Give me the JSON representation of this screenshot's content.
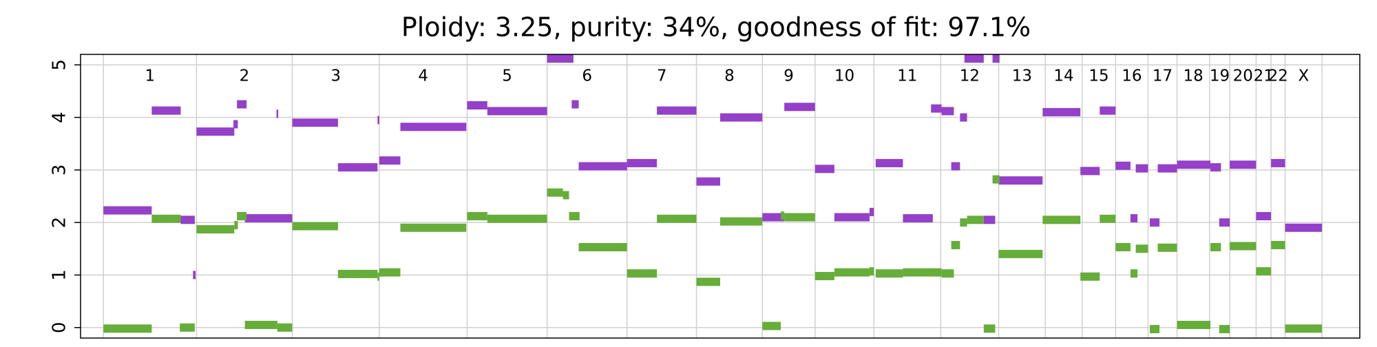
{
  "chart_data": {
    "type": "segments",
    "title": "Ploidy: 3.25, purity: 34%, goodness of fit: 97.1%",
    "xlim": [
      92,
      1548
    ],
    "ylim": [
      -0.2,
      5.2
    ],
    "yticks": [
      0,
      1,
      2,
      3,
      4,
      5
    ],
    "grid": true,
    "chromosomes": [
      "1",
      "2",
      "3",
      "4",
      "5",
      "6",
      "7",
      "8",
      "9",
      "10",
      "11",
      "12",
      "13",
      "14",
      "15",
      "16",
      "17",
      "18",
      "19",
      "20",
      "21",
      "22",
      "X"
    ],
    "boundaries": [
      118,
      224,
      333,
      432,
      532,
      623,
      714,
      793,
      868,
      928,
      995,
      1071,
      1137,
      1190,
      1232,
      1270,
      1307,
      1340,
      1377,
      1400,
      1430,
      1447,
      1463,
      1505
    ],
    "series": [
      {
        "color": "#9440c8",
        "x_start": [
          118,
          173,
          206,
          220,
          224,
          266,
          270,
          279,
          315,
          333,
          385,
          430,
          432,
          456,
          532,
          555,
          623,
          651,
          659,
          714,
          748,
          793,
          820,
          868,
          893,
          928,
          950,
          990,
          997,
          1028,
          1060,
          1072,
          1083,
          1093,
          1098,
          1120,
          1130,
          1137,
          1187,
          1230,
          1252,
          1270,
          1287,
          1293,
          1309,
          1318,
          1340,
          1378,
          1388,
          1400,
          1430,
          1447,
          1463
        ],
        "x_end": [
          173,
          206,
          222,
          223,
          267,
          271,
          281,
          333,
          317,
          385,
          430,
          432,
          456,
          531,
          555,
          623,
          653,
          659,
          714,
          748,
          793,
          820,
          868,
          893,
          928,
          950,
          990,
          995,
          1028,
          1062,
          1072,
          1086,
          1093,
          1101,
          1120,
          1133,
          1138,
          1187,
          1230,
          1252,
          1270,
          1287,
          1295,
          1307,
          1320,
          1340,
          1378,
          1390,
          1400,
          1430,
          1447,
          1463,
          1505
        ],
        "values": [
          2.23,
          4.13,
          2.05,
          1.0,
          3.73,
          3.87,
          4.25,
          2.08,
          4.07,
          3.9,
          3.05,
          3.95,
          3.18,
          3.82,
          4.23,
          4.12,
          5.12,
          4.25,
          3.07,
          3.13,
          4.13,
          2.78,
          4.0,
          2.1,
          4.2,
          3.02,
          2.1,
          2.2,
          3.13,
          2.08,
          4.17,
          4.12,
          3.07,
          4.0,
          5.12,
          2.05,
          5.12,
          2.8,
          4.1,
          2.98,
          4.13,
          3.08,
          2.08,
          3.03,
          2.0,
          3.03,
          3.1,
          3.05,
          2.0,
          3.1,
          2.12,
          3.13,
          1.9
        ]
      },
      {
        "color": "#66ad3a",
        "x_start": [
          118,
          173,
          205,
          224,
          267,
          270,
          279,
          316,
          333,
          385,
          430,
          432,
          456,
          532,
          555,
          623,
          641,
          648,
          659,
          714,
          748,
          793,
          820,
          868,
          889,
          893,
          928,
          950,
          990,
          997,
          1028,
          1060,
          1072,
          1083,
          1093,
          1101,
          1120,
          1130,
          1137,
          1187,
          1230,
          1252,
          1270,
          1287,
          1293,
          1309,
          1318,
          1340,
          1378,
          1388,
          1400,
          1430,
          1447,
          1463
        ],
        "x_end": [
          173,
          206,
          222,
          267,
          271,
          281,
          316,
          333,
          385,
          430,
          432,
          456,
          531,
          555,
          623,
          641,
          648,
          660,
          714,
          748,
          793,
          820,
          868,
          889,
          893,
          928,
          950,
          990,
          995,
          1028,
          1062,
          1072,
          1086,
          1093,
          1101,
          1120,
          1133,
          1138,
          1187,
          1230,
          1252,
          1270,
          1287,
          1295,
          1307,
          1320,
          1340,
          1378,
          1390,
          1400,
          1430,
          1447,
          1463,
          1505
        ],
        "values": [
          -0.02,
          2.07,
          0.0,
          1.87,
          1.95,
          2.12,
          0.05,
          0.0,
          1.93,
          1.02,
          0.97,
          1.05,
          1.9,
          2.12,
          2.07,
          2.57,
          2.52,
          2.12,
          1.53,
          1.03,
          2.07,
          0.87,
          2.02,
          0.03,
          2.13,
          2.1,
          0.98,
          1.05,
          1.07,
          1.03,
          1.05,
          1.05,
          1.03,
          1.57,
          2.0,
          2.05,
          -0.02,
          2.82,
          1.4,
          2.05,
          0.97,
          2.07,
          1.53,
          1.03,
          1.5,
          -0.03,
          1.52,
          0.05,
          1.53,
          -0.03,
          1.55,
          1.07,
          1.57,
          -0.02
        ]
      }
    ]
  }
}
